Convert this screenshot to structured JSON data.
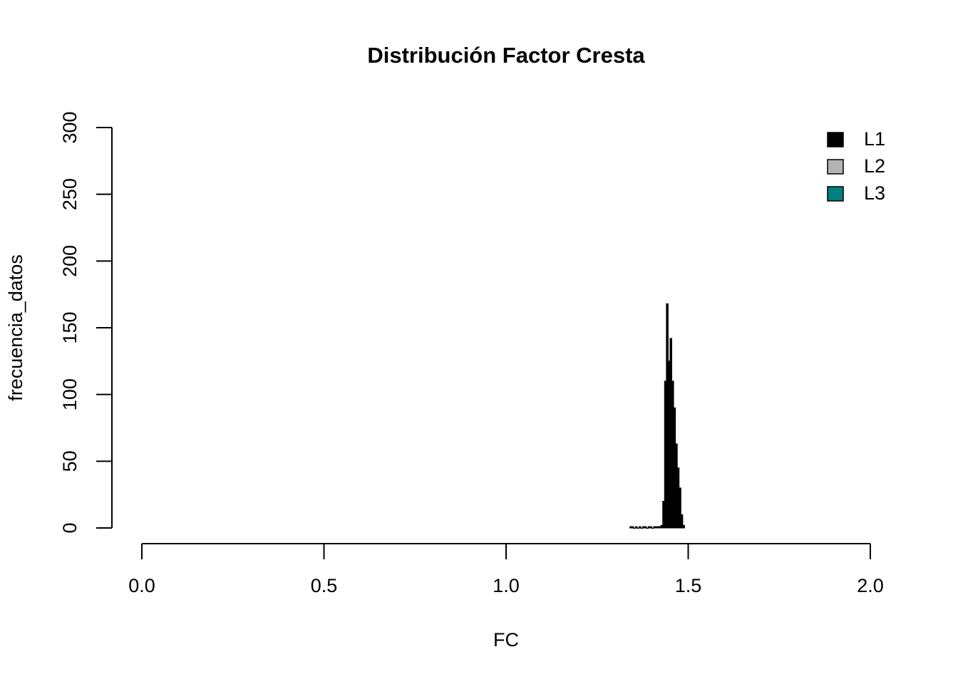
{
  "chart_data": {
    "type": "histogram",
    "title": "Distribución Factor Cresta",
    "x_label": "FC",
    "y_label": "frecuencia_datos",
    "bins": [
      1.34,
      1.345,
      1.35,
      1.355,
      1.36,
      1.365,
      1.37,
      1.375,
      1.38,
      1.385,
      1.39,
      1.395,
      1.4,
      1.405,
      1.41,
      1.415,
      1.42,
      1.425,
      1.43,
      1.435,
      1.44,
      1.445,
      1.45,
      1.455,
      1.46,
      1.465,
      1.47,
      1.475,
      1.48,
      1.485,
      1.49
    ],
    "series": [
      {
        "name": "L1",
        "color": "#000000",
        "values": [
          1,
          1,
          0,
          1,
          0,
          1,
          0,
          1,
          1,
          0,
          1,
          1,
          0,
          1,
          1,
          1,
          1,
          2,
          20,
          110,
          168,
          125,
          142,
          110,
          90,
          63,
          45,
          30,
          10,
          2
        ]
      }
    ],
    "legend": {
      "position": "topright",
      "items": [
        {
          "name": "L1",
          "color": "#000000"
        },
        {
          "name": "L2",
          "color": "#b3b3b3"
        },
        {
          "name": "L3",
          "color": "#008080"
        }
      ]
    },
    "xlim": [
      0,
      2
    ],
    "xticks": [
      {
        "value": 0,
        "label": "0.0"
      },
      {
        "value": 0.5,
        "label": "0.5"
      },
      {
        "value": 1,
        "label": "1.0"
      },
      {
        "value": 1.5,
        "label": "1.5"
      },
      {
        "value": 2,
        "label": "2.0"
      }
    ],
    "ylim": [
      0,
      300
    ],
    "yticks": [
      0,
      50,
      100,
      150,
      200,
      250,
      300
    ],
    "grid": false
  }
}
